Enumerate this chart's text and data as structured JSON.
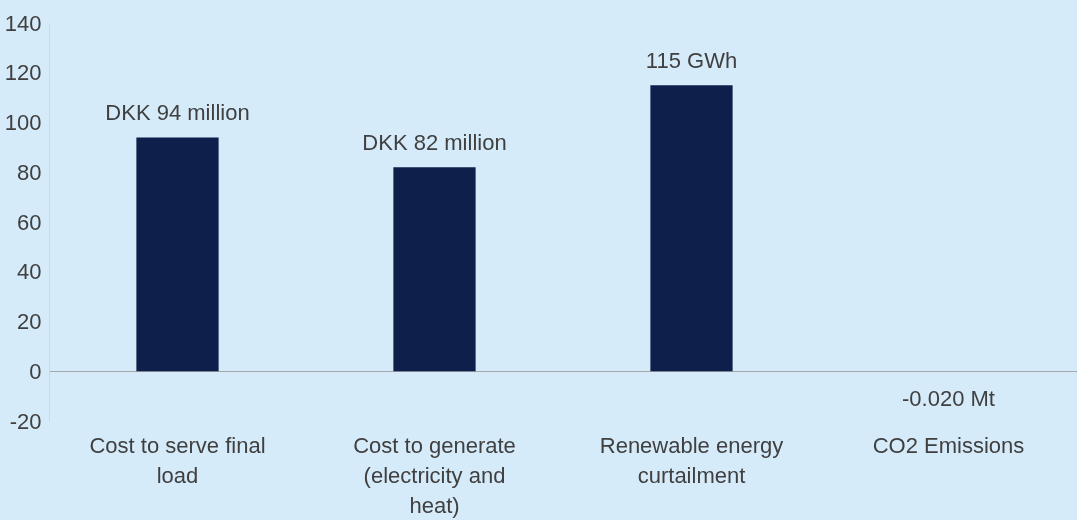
{
  "chart_data": {
    "type": "bar",
    "categories": [
      "Cost to serve final load",
      "Cost to generate (electricity and heat)",
      "Renewable energy curtailment",
      "CO2 Emissions"
    ],
    "values": [
      94,
      82,
      115,
      -0.02
    ],
    "value_labels": [
      "DKK 94 million",
      "DKK 82 million",
      "115 GWh",
      "-0.020 Mt"
    ],
    "color": "#0f1f4b",
    "ylim": [
      -20,
      140
    ],
    "yticks": [
      -20,
      0,
      20,
      40,
      60,
      80,
      100,
      120,
      140
    ]
  }
}
